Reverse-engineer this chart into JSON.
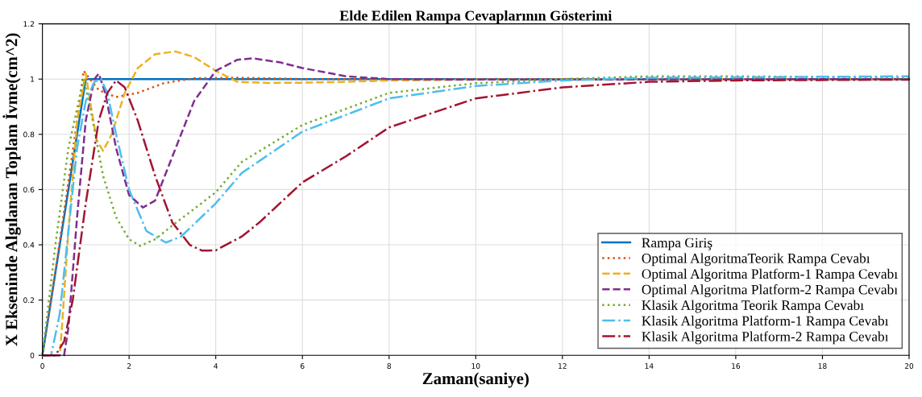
{
  "chart_data": {
    "type": "line",
    "title": "Elde Edilen Rampa Cevaplarının Gösterimi",
    "xlabel": "Zaman(saniye)",
    "ylabel": "X Ekseninde Algılanan Toplam İvme(cm^2)",
    "xlim": [
      0,
      20
    ],
    "ylim": [
      0,
      1.2
    ],
    "xticks": [
      0,
      2,
      4,
      6,
      8,
      10,
      12,
      14,
      16,
      18,
      20
    ],
    "yticks": [
      0,
      0.2,
      0.4,
      0.6,
      0.8,
      1,
      1.2
    ],
    "grid": true,
    "legend": "lower right",
    "marker": "none",
    "series": [
      {
        "name": "Rampa Giriş",
        "color": "#0072bd",
        "line_style": "solid",
        "x": [
          0,
          1,
          20
        ],
        "values": [
          0,
          1,
          1
        ]
      },
      {
        "name": "Optimal AlgoritmaTeorik Rampa Cevabı",
        "color": "#d95319",
        "line_style": "dotted",
        "x": [
          0,
          0.2,
          0.5,
          0.8,
          0.95,
          1.1,
          1.3,
          1.7,
          2.2,
          2.8,
          3.5,
          4.5,
          6,
          20
        ],
        "values": [
          0,
          0.2,
          0.52,
          0.85,
          1.03,
          1.0,
          0.96,
          0.935,
          0.95,
          0.985,
          1.003,
          1.005,
          1.0,
          1.0
        ]
      },
      {
        "name": "Optimal Algoritma Platform-1 Rampa Cevabı",
        "color": "#edb120",
        "line_style": "dashed",
        "x": [
          0,
          0.4,
          0.45,
          0.6,
          0.8,
          1.0,
          1.1,
          1.25,
          1.4,
          1.6,
          1.9,
          2.2,
          2.6,
          3.07,
          3.5,
          4,
          4.5,
          5.2,
          6,
          7,
          8,
          10,
          20
        ],
        "values": [
          0,
          0,
          0.1,
          0.45,
          0.85,
          1.02,
          0.92,
          0.78,
          0.74,
          0.8,
          0.95,
          1.04,
          1.09,
          1.1,
          1.08,
          1.03,
          0.99,
          0.986,
          0.987,
          0.99,
          0.995,
          0.998,
          1.0
        ]
      },
      {
        "name": "Optimal Algoritma Platform-2 Rampa Cevabı",
        "color": "#7e2f8e",
        "line_style": "dashed",
        "x": [
          0,
          0.5,
          0.6,
          0.8,
          1.0,
          1.2,
          1.3,
          1.45,
          1.7,
          2.0,
          2.32,
          2.6,
          3.0,
          3.5,
          4.0,
          4.5,
          4.86,
          5.5,
          6,
          7,
          8,
          10,
          20
        ],
        "values": [
          0,
          0,
          0.1,
          0.5,
          0.85,
          1.0,
          1.02,
          0.95,
          0.75,
          0.58,
          0.535,
          0.56,
          0.72,
          0.92,
          1.03,
          1.07,
          1.075,
          1.06,
          1.04,
          1.01,
          1.0,
          0.998,
          1.0
        ]
      },
      {
        "name": "Klasik Algoritma Teorik Rampa Cevabı",
        "color": "#77ac30",
        "line_style": "dotted",
        "x": [
          0,
          0.3,
          0.6,
          0.95,
          1.1,
          1.4,
          1.7,
          2.0,
          2.26,
          2.6,
          3,
          4,
          4.6,
          6,
          8,
          10,
          12,
          14,
          16,
          20
        ],
        "values": [
          0,
          0.4,
          0.75,
          1.0,
          0.9,
          0.65,
          0.5,
          0.42,
          0.396,
          0.42,
          0.47,
          0.59,
          0.7,
          0.834,
          0.95,
          0.985,
          1.0,
          1.01,
          1.01,
          1.005
        ]
      },
      {
        "name": "Klasik Algoritma Platform-1 Rampa Cevabı",
        "color": "#4dbeee",
        "line_style": "dashdot",
        "x": [
          0,
          0.2,
          0.4,
          0.6,
          0.8,
          1.0,
          1.2,
          1.35,
          1.5,
          1.7,
          2.0,
          2.4,
          2.85,
          3.2,
          4,
          4.6,
          6,
          8,
          10,
          12,
          14,
          20
        ],
        "values": [
          0,
          0,
          0.15,
          0.45,
          0.75,
          0.92,
          0.99,
          1.0,
          0.95,
          0.8,
          0.6,
          0.45,
          0.408,
          0.43,
          0.55,
          0.66,
          0.81,
          0.93,
          0.975,
          0.995,
          1.005,
          1.01
        ]
      },
      {
        "name": "Klasik Algoritma Platform-2 Rampa Cevabı",
        "color": "#a2142f",
        "line_style": "dashdot",
        "x": [
          0,
          0.3,
          0.5,
          0.7,
          1.0,
          1.3,
          1.5,
          1.7,
          1.9,
          2.2,
          2.6,
          3.0,
          3.4,
          3.68,
          4.0,
          4.6,
          5,
          6,
          7,
          8,
          10,
          12,
          14,
          16,
          20
        ],
        "values": [
          0,
          0,
          0.05,
          0.2,
          0.55,
          0.85,
          0.95,
          0.995,
          0.97,
          0.85,
          0.65,
          0.48,
          0.4,
          0.379,
          0.38,
          0.43,
          0.48,
          0.626,
          0.72,
          0.825,
          0.93,
          0.97,
          0.99,
          0.995,
          0.998
        ]
      }
    ]
  }
}
